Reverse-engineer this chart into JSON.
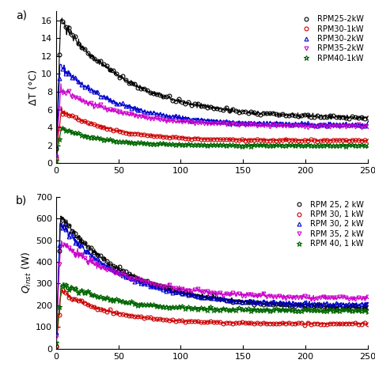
{
  "title_a": "a)",
  "title_b": "b)",
  "ylabel_a": "ΔT (°C)",
  "ylabel_b": "$Q_{inst}$ (W)",
  "xlim": [
    0,
    250
  ],
  "ylim_a": [
    0,
    17
  ],
  "ylim_b": [
    0,
    700
  ],
  "xticks": [
    0,
    50,
    100,
    150,
    200,
    250
  ],
  "yticks_a": [
    0,
    2,
    4,
    6,
    8,
    10,
    12,
    14,
    16
  ],
  "yticks_b": [
    0,
    100,
    200,
    300,
    400,
    500,
    600,
    700
  ],
  "series_a": [
    {
      "label": "RPM25-2kW",
      "color": "#000000",
      "marker": "o",
      "peak": 16.0,
      "peak_x": 3.5,
      "steady": 5.0,
      "decay": 0.018,
      "noise": 0.12
    },
    {
      "label": "RPM30-1kW",
      "color": "#CC0000",
      "marker": "o",
      "peak": 5.9,
      "peak_x": 4.0,
      "steady": 2.55,
      "decay": 0.025,
      "noise": 0.06
    },
    {
      "label": "RPM30-2kW",
      "color": "#0000CC",
      "marker": "^",
      "peak": 11.0,
      "peak_x": 3.0,
      "steady": 4.3,
      "decay": 0.022,
      "noise": 0.1
    },
    {
      "label": "RPM35-2kW",
      "color": "#CC00CC",
      "marker": "v",
      "peak": 8.3,
      "peak_x": 3.5,
      "steady": 4.1,
      "decay": 0.02,
      "noise": 0.09
    },
    {
      "label": "RPM40-1kW",
      "color": "#006600",
      "marker": "*",
      "peak": 3.9,
      "peak_x": 4.0,
      "steady": 2.0,
      "decay": 0.03,
      "noise": 0.05
    }
  ],
  "series_b": [
    {
      "label": "RPM 25, 2 kW",
      "color": "#000000",
      "marker": "o",
      "peak": 610,
      "peak_x": 3.5,
      "steady": 185,
      "decay": 0.018,
      "noise": 5.0
    },
    {
      "label": "RPM 30, 1 kW",
      "color": "#CC0000",
      "marker": "o",
      "peak": 265,
      "peak_x": 4.0,
      "steady": 115,
      "decay": 0.025,
      "noise": 3.0
    },
    {
      "label": "RPM 30, 2 kW",
      "color": "#0000CC",
      "marker": "^",
      "peak": 580,
      "peak_x": 3.0,
      "steady": 200,
      "decay": 0.02,
      "noise": 5.0
    },
    {
      "label": "RPM 35, 2 kW",
      "color": "#CC00CC",
      "marker": "v",
      "peak": 495,
      "peak_x": 3.5,
      "steady": 230,
      "decay": 0.018,
      "noise": 5.0
    },
    {
      "label": "RPM 40, 1 kW",
      "color": "#006600",
      "marker": "*",
      "peak": 300,
      "peak_x": 4.0,
      "steady": 175,
      "decay": 0.022,
      "noise": 4.0
    }
  ],
  "background_color": "#ffffff"
}
